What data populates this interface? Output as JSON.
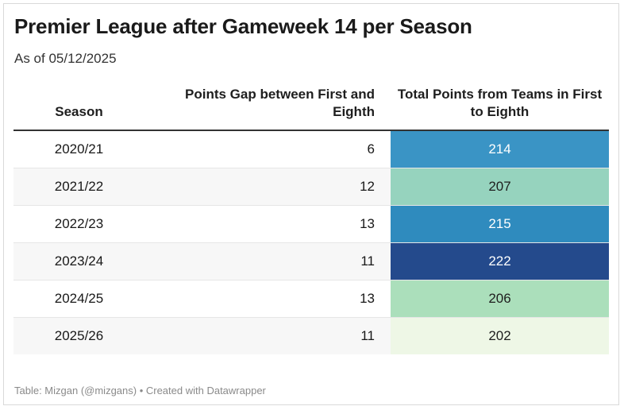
{
  "chart_data": {
    "type": "table",
    "title": "Premier League after Gameweek 14 per Season",
    "subtitle": "As of 05/12/2025",
    "columns": [
      "Season",
      "Points Gap between First and Eighth",
      "Total Points from Teams in First to Eighth"
    ],
    "rows": [
      {
        "season": "2020/21",
        "gap": 6,
        "total": 214,
        "color": "#3a94c5",
        "text_color": "#ffffff"
      },
      {
        "season": "2021/22",
        "gap": 12,
        "total": 207,
        "color": "#96d3be",
        "text_color": "#1e1e1e"
      },
      {
        "season": "2022/23",
        "gap": 13,
        "total": 215,
        "color": "#2f8bbe",
        "text_color": "#ffffff"
      },
      {
        "season": "2023/24",
        "gap": 11,
        "total": 222,
        "color": "#244a8c",
        "text_color": "#ffffff"
      },
      {
        "season": "2024/25",
        "gap": 13,
        "total": 206,
        "color": "#abdfbb",
        "text_color": "#1e1e1e"
      },
      {
        "season": "2025/26",
        "gap": 11,
        "total": 202,
        "color": "#eef7e6",
        "text_color": "#1e1e1e"
      }
    ],
    "footer": "Table: Mizgan (@mizgans) • Created with Datawrapper"
  }
}
